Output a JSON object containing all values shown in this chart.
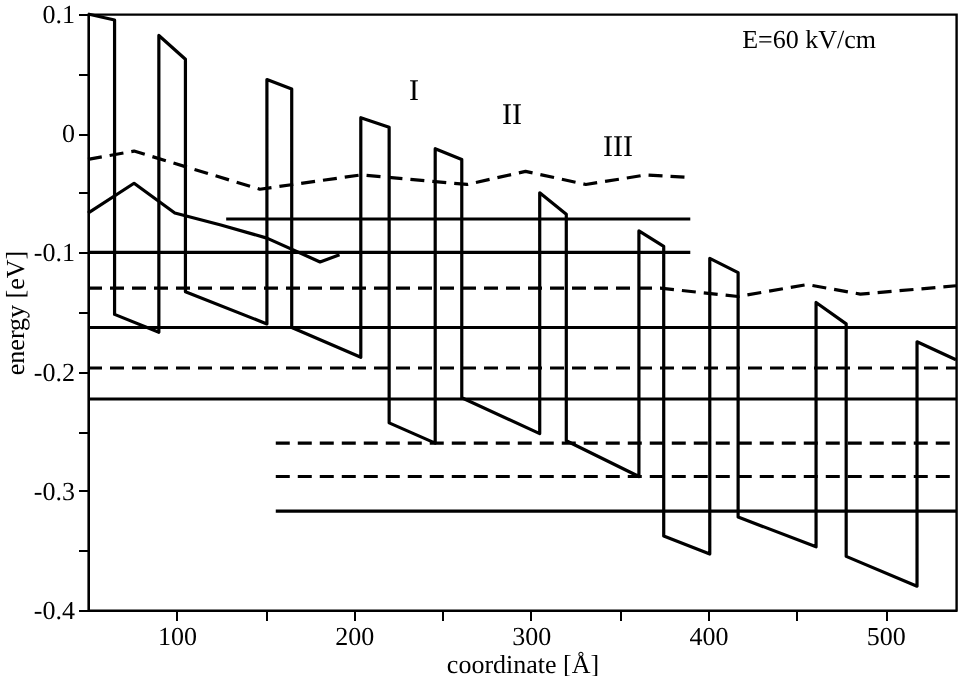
{
  "chart_data": {
    "type": "line",
    "xlabel": "coordinate [Å]",
    "ylabel": "energy [eV]",
    "xlim": [
      50,
      540
    ],
    "ylim": [
      -0.4,
      0.1
    ],
    "xticks": [
      100,
      {
        "value": 150,
        "label": null
      },
      200,
      {
        "value": 250,
        "label": null
      },
      300,
      {
        "value": 350,
        "label": null
      },
      400,
      {
        "value": 450,
        "label": null
      },
      500
    ],
    "yticks": [
      -0.4,
      {
        "value": -0.35,
        "label": null
      },
      -0.3,
      {
        "value": -0.25,
        "label": null
      },
      -0.2,
      {
        "value": -0.15,
        "label": null
      },
      -0.1,
      {
        "value": -0.05,
        "label": null
      },
      0,
      {
        "value": 0.05,
        "label": null
      },
      0.1
    ],
    "grid": false,
    "marker": "none",
    "series": [
      {
        "color": "#000000",
        "line_style": "solid",
        "x": [
          50,
          65,
          65,
          90,
          90,
          105,
          105,
          151,
          151,
          165,
          165,
          204,
          204,
          220,
          220,
          246,
          246,
          261,
          261,
          305,
          305,
          320,
          320,
          361,
          361,
          375,
          375,
          401,
          401,
          417,
          417,
          461,
          461,
          478,
          478,
          518,
          518,
          540
        ],
        "values": [
          0.1,
          0.095,
          -0.152,
          -0.167,
          0.082,
          0.062,
          -0.133,
          -0.16,
          0.045,
          0.037,
          -0.163,
          -0.188,
          0.013,
          0.005,
          -0.243,
          -0.26,
          -0.013,
          -0.022,
          -0.222,
          -0.252,
          -0.05,
          -0.068,
          -0.258,
          -0.288,
          -0.082,
          -0.095,
          -0.338,
          -0.353,
          -0.105,
          -0.117,
          -0.322,
          -0.347,
          -0.142,
          -0.16,
          -0.355,
          -0.38,
          -0.175,
          -0.19
        ]
      },
      {
        "color": "#000000",
        "line_style": "solid",
        "x": [
          128,
          390
        ],
        "values": [
          -0.072,
          -0.072
        ]
      },
      {
        "color": "#000000",
        "line_style": "solid",
        "x": [
          50,
          390
        ],
        "values": [
          -0.1,
          -0.1
        ]
      },
      {
        "color": "#000000",
        "line_style": "dashed",
        "x": [
          50,
          373,
          417,
          456,
          486,
          540
        ],
        "values": [
          -0.13,
          -0.13,
          -0.137,
          -0.127,
          -0.135,
          -0.128
        ]
      },
      {
        "color": "#000000",
        "line_style": "solid",
        "x": [
          50,
          540
        ],
        "values": [
          -0.163,
          -0.163
        ]
      },
      {
        "color": "#000000",
        "line_style": "dashed",
        "x": [
          50,
          540
        ],
        "values": [
          -0.197,
          -0.197
        ]
      },
      {
        "color": "#000000",
        "line_style": "solid",
        "x": [
          50,
          540
        ],
        "values": [
          -0.223,
          -0.223
        ]
      },
      {
        "color": "#000000",
        "line_style": "dashed",
        "x": [
          156,
          540
        ],
        "values": [
          -0.26,
          -0.26
        ]
      },
      {
        "color": "#000000",
        "line_style": "dashed",
        "x": [
          156,
          540
        ],
        "values": [
          -0.288,
          -0.288
        ]
      },
      {
        "color": "#000000",
        "line_style": "solid",
        "x": [
          156,
          540
        ],
        "values": [
          -0.317,
          -0.317
        ]
      },
      {
        "color": "#000000",
        "line_style": "dashed",
        "x": [
          50,
          76,
          147,
          204,
          264,
          297,
          331,
          365,
          388
        ],
        "values": [
          -0.022,
          -0.015,
          -0.047,
          -0.035,
          -0.043,
          -0.032,
          -0.043,
          -0.035,
          -0.037
        ]
      },
      {
        "color": "#000000",
        "line_style": "solid",
        "x": [
          50,
          76,
          99,
          125,
          151,
          181,
          192
        ],
        "values": [
          -0.067,
          -0.042,
          -0.067,
          -0.077,
          -0.088,
          -0.108,
          -0.102
        ]
      }
    ],
    "annotations": [
      "I",
      "II",
      "III",
      "E=60 kV/cm"
    ]
  }
}
